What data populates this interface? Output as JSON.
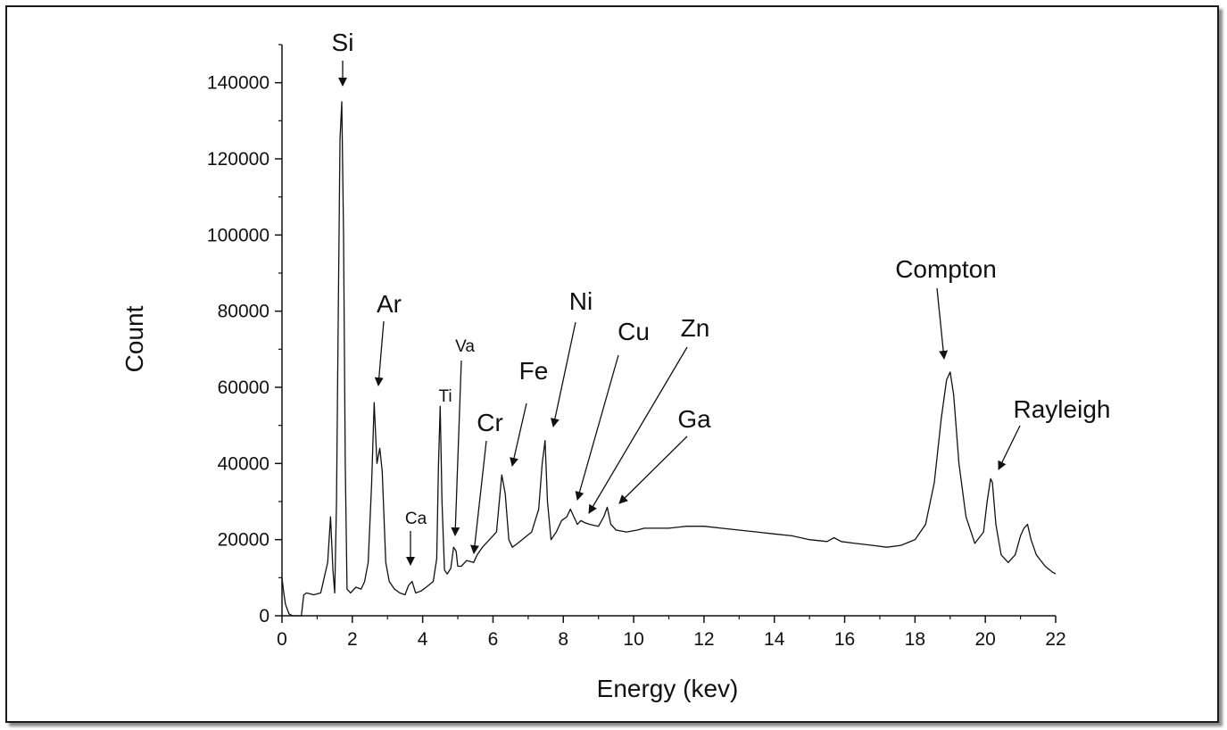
{
  "chart_data": {
    "type": "line",
    "xlabel": "Energy (kev)",
    "ylabel": "Count",
    "xlim": [
      0,
      22
    ],
    "ylim": [
      0,
      150000
    ],
    "x_ticks": [
      0,
      2,
      4,
      6,
      8,
      10,
      12,
      14,
      16,
      18,
      20,
      22
    ],
    "y_ticks": [
      0,
      20000,
      40000,
      60000,
      80000,
      100000,
      120000,
      140000
    ],
    "grid": false,
    "legend": "none",
    "line_color": "#111111",
    "series": [
      {
        "x": [
          0,
          0.05,
          0.1,
          0.2,
          0.3,
          0.55,
          0.62,
          0.7,
          0.9,
          1.1,
          1.2,
          1.3,
          1.38,
          1.45,
          1.5,
          1.55,
          1.6,
          1.65,
          1.7,
          1.75,
          1.8,
          1.85,
          1.95,
          2.1,
          2.25,
          2.35,
          2.45,
          2.55,
          2.62,
          2.7,
          2.78,
          2.85,
          2.9,
          2.95,
          3.05,
          3.2,
          3.35,
          3.5,
          3.6,
          3.7,
          3.8,
          3.95,
          4.1,
          4.3,
          4.4,
          4.45,
          4.5,
          4.55,
          4.62,
          4.7,
          4.8,
          4.88,
          4.95,
          5.0,
          5.1,
          5.25,
          5.45,
          5.55,
          5.7,
          5.9,
          6.1,
          6.25,
          6.35,
          6.45,
          6.55,
          6.7,
          6.9,
          7.1,
          7.3,
          7.4,
          7.48,
          7.55,
          7.65,
          7.8,
          7.95,
          8.1,
          8.2,
          8.3,
          8.4,
          8.5,
          8.6,
          8.75,
          9.0,
          9.15,
          9.25,
          9.35,
          9.5,
          9.8,
          10.1,
          10.3,
          10.5,
          11.0,
          11.5,
          12.0,
          12.5,
          13.0,
          13.5,
          14.0,
          14.5,
          15.0,
          15.5,
          15.7,
          15.9,
          16.3,
          16.8,
          17.2,
          17.6,
          18.0,
          18.3,
          18.55,
          18.75,
          18.9,
          19.0,
          19.1,
          19.25,
          19.45,
          19.7,
          19.95,
          20.05,
          20.15,
          20.2,
          20.3,
          20.45,
          20.65,
          20.85,
          21.0,
          21.1,
          21.2,
          21.3,
          21.45,
          21.7,
          21.9,
          22.0
        ],
        "y": [
          10000,
          6000,
          3000,
          500,
          0,
          0,
          5500,
          6000,
          5500,
          6000,
          10000,
          14000,
          26000,
          12000,
          6000,
          30000,
          80000,
          125000,
          135000,
          100000,
          40000,
          7000,
          6000,
          7500,
          7000,
          9000,
          14000,
          35000,
          56000,
          40000,
          44000,
          38000,
          26000,
          14000,
          9000,
          7000,
          6000,
          5500,
          8000,
          9000,
          6000,
          6500,
          7500,
          9000,
          15000,
          40000,
          55000,
          30000,
          12000,
          11000,
          12500,
          18000,
          17000,
          13000,
          13000,
          14500,
          14000,
          16000,
          18000,
          20000,
          22000,
          37000,
          32000,
          20000,
          18000,
          19000,
          20500,
          22000,
          28000,
          40000,
          46000,
          30000,
          20000,
          22000,
          25000,
          26000,
          28000,
          26000,
          24000,
          25000,
          24500,
          24000,
          23500,
          26000,
          28500,
          24000,
          22500,
          22000,
          22500,
          23000,
          23000,
          23000,
          23500,
          23500,
          23000,
          22500,
          22000,
          21500,
          21000,
          20000,
          19500,
          20500,
          19500,
          19000,
          18500,
          18000,
          18500,
          20000,
          24000,
          35000,
          52000,
          62000,
          64000,
          58000,
          40000,
          26000,
          19000,
          22000,
          30000,
          36000,
          35000,
          24000,
          16000,
          14000,
          16000,
          21000,
          23000,
          24000,
          20000,
          16000,
          13000,
          11500,
          11000
        ]
      }
    ],
    "annotations": [
      {
        "label": "Si",
        "size": "big"
      },
      {
        "label": "Ar",
        "size": "big"
      },
      {
        "label": "Ca",
        "size": "small"
      },
      {
        "label": "Ti",
        "size": "small"
      },
      {
        "label": "Va",
        "size": "small"
      },
      {
        "label": "Cr",
        "size": "big"
      },
      {
        "label": "Fe",
        "size": "big"
      },
      {
        "label": "Ni",
        "size": "big"
      },
      {
        "label": "Cu",
        "size": "big"
      },
      {
        "label": "Zn",
        "size": "big"
      },
      {
        "label": "Ga",
        "size": "big"
      },
      {
        "label": "Compton",
        "size": "big"
      },
      {
        "label": "Rayleigh",
        "size": "big"
      }
    ]
  }
}
